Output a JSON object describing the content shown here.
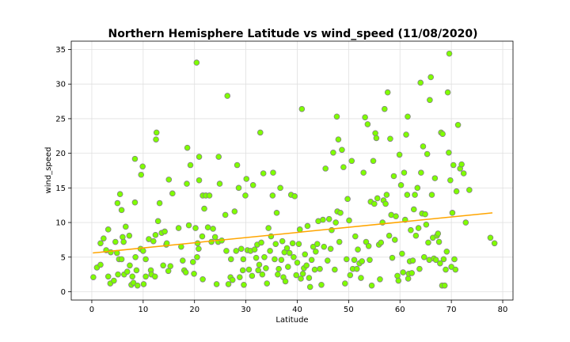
{
  "chart_data": {
    "type": "scatter",
    "title": "Northern Hemisphere Latitude vs wind_speed (11/08/2020)",
    "xlabel": "Latitude",
    "ylabel": "wind_speed",
    "xlim": [
      -4,
      82
    ],
    "ylim": [
      -1.2,
      36.2
    ],
    "xticks": [
      0,
      10,
      20,
      30,
      40,
      50,
      60,
      70,
      80
    ],
    "yticks": [
      0,
      5,
      10,
      15,
      20,
      25,
      30,
      35
    ],
    "grid": true,
    "marker_color": "#7fff00",
    "marker_edge_color": "#808080",
    "regression": {
      "color": "#ffa500",
      "x": [
        0.2,
        78
      ],
      "y": [
        5.6,
        11.4
      ]
    },
    "points": [
      [
        0.3,
        2.1
      ],
      [
        1.0,
        3.5
      ],
      [
        1.7,
        7.0
      ],
      [
        1.7,
        3.9
      ],
      [
        2.3,
        7.7
      ],
      [
        2.8,
        6.0
      ],
      [
        3.2,
        9.0
      ],
      [
        3.2,
        2.2
      ],
      [
        3.7,
        5.7
      ],
      [
        3.6,
        1.2
      ],
      [
        4.3,
        1.6
      ],
      [
        4.6,
        7.2
      ],
      [
        4.9,
        5.6
      ],
      [
        5.0,
        12.8
      ],
      [
        5.3,
        4.7
      ],
      [
        5.1,
        2.5
      ],
      [
        5.5,
        14.1
      ],
      [
        5.8,
        4.7
      ],
      [
        5.8,
        11.8
      ],
      [
        6.0,
        7.9
      ],
      [
        6.2,
        7.2
      ],
      [
        6.3,
        2.5
      ],
      [
        6.6,
        9.4
      ],
      [
        6.9,
        2.9
      ],
      [
        7.3,
        8.1
      ],
      [
        7.4,
        3.8
      ],
      [
        7.7,
        1.0
      ],
      [
        7.9,
        2.2
      ],
      [
        8.1,
        1.3
      ],
      [
        8.4,
        19.2
      ],
      [
        8.4,
        12.9
      ],
      [
        8.5,
        5.0
      ],
      [
        8.7,
        3.1
      ],
      [
        8.9,
        0.9
      ],
      [
        9.5,
        6.2
      ],
      [
        9.6,
        16.9
      ],
      [
        9.9,
        18.1
      ],
      [
        10.0,
        5.9
      ],
      [
        10.1,
        1.1
      ],
      [
        10.5,
        2.2
      ],
      [
        10.5,
        4.7
      ],
      [
        11.1,
        7.6
      ],
      [
        11.5,
        3.1
      ],
      [
        11.6,
        2.5
      ],
      [
        12.0,
        7.3
      ],
      [
        12.3,
        2.2
      ],
      [
        12.4,
        8.2
      ],
      [
        12.5,
        22.0
      ],
      [
        12.6,
        23.0
      ],
      [
        12.9,
        10.2
      ],
      [
        13.2,
        12.8
      ],
      [
        13.6,
        8.5
      ],
      [
        13.9,
        3.8
      ],
      [
        14.2,
        8.7
      ],
      [
        14.5,
        6.8
      ],
      [
        14.6,
        7.0
      ],
      [
        14.9,
        3.0
      ],
      [
        15.0,
        16.2
      ],
      [
        15.3,
        3.7
      ],
      [
        15.7,
        14.2
      ],
      [
        16.9,
        9.2
      ],
      [
        17.4,
        6.5
      ],
      [
        17.7,
        4.5
      ],
      [
        18.0,
        3.1
      ],
      [
        18.3,
        2.8
      ],
      [
        18.5,
        15.6
      ],
      [
        18.6,
        20.8
      ],
      [
        18.9,
        9.6
      ],
      [
        19.2,
        18.3
      ],
      [
        19.7,
        4.3
      ],
      [
        19.9,
        2.6
      ],
      [
        20.2,
        9.2
      ],
      [
        20.4,
        33.1
      ],
      [
        20.5,
        5.0
      ],
      [
        20.6,
        7.0
      ],
      [
        20.8,
        6.2
      ],
      [
        20.9,
        16.1
      ],
      [
        20.9,
        19.5
      ],
      [
        21.5,
        8.0
      ],
      [
        21.6,
        13.9
      ],
      [
        21.6,
        1.8
      ],
      [
        21.9,
        12.0
      ],
      [
        22.2,
        13.9
      ],
      [
        22.6,
        9.3
      ],
      [
        22.9,
        13.9
      ],
      [
        23.3,
        7.2
      ],
      [
        23.6,
        9.1
      ],
      [
        24.0,
        7.9
      ],
      [
        24.3,
        1.1
      ],
      [
        24.6,
        7.2
      ],
      [
        24.7,
        19.5
      ],
      [
        24.9,
        15.6
      ],
      [
        25.3,
        7.4
      ],
      [
        26.0,
        11.1
      ],
      [
        26.2,
        5.9
      ],
      [
        26.4,
        28.3
      ],
      [
        26.6,
        1.1
      ],
      [
        27.0,
        2.1
      ],
      [
        27.1,
        4.7
      ],
      [
        27.4,
        1.7
      ],
      [
        27.8,
        11.6
      ],
      [
        28.1,
        5.9
      ],
      [
        28.3,
        18.3
      ],
      [
        28.6,
        15.0
      ],
      [
        28.8,
        2.1
      ],
      [
        29.1,
        6.2
      ],
      [
        29.4,
        3.1
      ],
      [
        29.5,
        4.7
      ],
      [
        29.6,
        1.0
      ],
      [
        29.9,
        13.9
      ],
      [
        30.1,
        16.3
      ],
      [
        30.3,
        6.0
      ],
      [
        30.6,
        3.2
      ],
      [
        30.9,
        5.9
      ],
      [
        31.2,
        2.3
      ],
      [
        31.4,
        15.4
      ],
      [
        31.7,
        6.1
      ],
      [
        32.0,
        4.9
      ],
      [
        32.2,
        6.8
      ],
      [
        32.4,
        3.1
      ],
      [
        32.6,
        3.9
      ],
      [
        32.8,
        23.0
      ],
      [
        33.0,
        7.1
      ],
      [
        33.2,
        2.5
      ],
      [
        33.4,
        17.1
      ],
      [
        33.6,
        5.0
      ],
      [
        33.9,
        3.4
      ],
      [
        34.1,
        1.2
      ],
      [
        34.4,
        9.2
      ],
      [
        34.7,
        5.9
      ],
      [
        34.9,
        8.0
      ],
      [
        35.2,
        13.9
      ],
      [
        35.3,
        17.2
      ],
      [
        35.6,
        4.7
      ],
      [
        35.8,
        6.9
      ],
      [
        36.0,
        11.4
      ],
      [
        36.2,
        2.5
      ],
      [
        36.4,
        3.3
      ],
      [
        36.7,
        15.0
      ],
      [
        36.9,
        4.6
      ],
      [
        37.1,
        7.3
      ],
      [
        37.3,
        2.1
      ],
      [
        37.5,
        5.7
      ],
      [
        37.7,
        1.5
      ],
      [
        38.0,
        6.3
      ],
      [
        38.2,
        3.6
      ],
      [
        38.5,
        5.6
      ],
      [
        38.8,
        14.0
      ],
      [
        39.1,
        7.0
      ],
      [
        39.3,
        5.0
      ],
      [
        39.5,
        13.8
      ],
      [
        39.8,
        2.4
      ],
      [
        40.0,
        4.2
      ],
      [
        40.3,
        6.9
      ],
      [
        40.5,
        9.0
      ],
      [
        40.7,
        1.9
      ],
      [
        40.9,
        26.4
      ],
      [
        41.1,
        2.6
      ],
      [
        41.3,
        3.4
      ],
      [
        41.5,
        5.4
      ],
      [
        41.8,
        3.8
      ],
      [
        42.0,
        9.5
      ],
      [
        42.3,
        2.0
      ],
      [
        42.5,
        0.7
      ],
      [
        42.8,
        4.6
      ],
      [
        43.1,
        6.5
      ],
      [
        43.4,
        3.2
      ],
      [
        43.6,
        5.8
      ],
      [
        43.9,
        6.9
      ],
      [
        44.1,
        10.2
      ],
      [
        44.4,
        3.3
      ],
      [
        44.7,
        1.0
      ],
      [
        45.0,
        10.4
      ],
      [
        45.2,
        6.5
      ],
      [
        45.5,
        17.8
      ],
      [
        45.9,
        4.5
      ],
      [
        46.2,
        10.5
      ],
      [
        46.5,
        6.2
      ],
      [
        46.7,
        8.9
      ],
      [
        47.0,
        20.1
      ],
      [
        47.3,
        3.2
      ],
      [
        47.5,
        10.0
      ],
      [
        47.7,
        25.3
      ],
      [
        47.8,
        11.6
      ],
      [
        48.0,
        22.0
      ],
      [
        48.2,
        7.2
      ],
      [
        48.4,
        11.4
      ],
      [
        48.7,
        20.5
      ],
      [
        49.0,
        18.0
      ],
      [
        49.3,
        1.2
      ],
      [
        49.6,
        4.7
      ],
      [
        49.8,
        13.4
      ],
      [
        50.1,
        10.3
      ],
      [
        50.3,
        2.4
      ],
      [
        50.6,
        18.9
      ],
      [
        50.8,
        3.3
      ],
      [
        51.1,
        4.6
      ],
      [
        51.3,
        8.0
      ],
      [
        51.6,
        3.3
      ],
      [
        51.8,
        6.1
      ],
      [
        52.1,
        4.1
      ],
      [
        52.4,
        2.0
      ],
      [
        52.6,
        4.4
      ],
      [
        52.9,
        17.2
      ],
      [
        53.2,
        25.2
      ],
      [
        53.4,
        7.2
      ],
      [
        53.7,
        24.2
      ],
      [
        53.9,
        6.6
      ],
      [
        54.1,
        4.6
      ],
      [
        54.3,
        13.0
      ],
      [
        54.5,
        0.9
      ],
      [
        54.8,
        18.9
      ],
      [
        55.0,
        12.7
      ],
      [
        55.2,
        22.9
      ],
      [
        55.4,
        22.2
      ],
      [
        55.6,
        13.5
      ],
      [
        55.9,
        6.8
      ],
      [
        56.1,
        1.8
      ],
      [
        56.3,
        7.1
      ],
      [
        56.6,
        10.0
      ],
      [
        56.8,
        13.2
      ],
      [
        57.0,
        26.4
      ],
      [
        57.2,
        12.7
      ],
      [
        57.4,
        14.0
      ],
      [
        57.6,
        28.8
      ],
      [
        57.9,
        8.1
      ],
      [
        58.1,
        22.1
      ],
      [
        58.3,
        11.1
      ],
      [
        58.5,
        4.9
      ],
      [
        58.8,
        16.7
      ],
      [
        59.0,
        7.5
      ],
      [
        59.2,
        10.9
      ],
      [
        59.5,
        2.3
      ],
      [
        59.7,
        1.6
      ],
      [
        59.9,
        19.8
      ],
      [
        60.2,
        15.4
      ],
      [
        60.4,
        5.5
      ],
      [
        60.6,
        2.8
      ],
      [
        60.8,
        17.2
      ],
      [
        61.0,
        10.4
      ],
      [
        61.2,
        22.7
      ],
      [
        61.4,
        14.0
      ],
      [
        61.5,
        25.3
      ],
      [
        61.6,
        1.9
      ],
      [
        61.7,
        2.6
      ],
      [
        61.9,
        4.4
      ],
      [
        62.1,
        8.9
      ],
      [
        62.3,
        2.7
      ],
      [
        62.5,
        4.5
      ],
      [
        62.7,
        11.9
      ],
      [
        62.9,
        14.0
      ],
      [
        63.1,
        8.1
      ],
      [
        63.4,
        15.0
      ],
      [
        63.6,
        9.2
      ],
      [
        63.8,
        3.3
      ],
      [
        64.0,
        30.2
      ],
      [
        64.1,
        17.2
      ],
      [
        64.3,
        11.3
      ],
      [
        64.5,
        21.0
      ],
      [
        64.7,
        5.0
      ],
      [
        64.9,
        11.2
      ],
      [
        65.1,
        9.7
      ],
      [
        65.3,
        19.9
      ],
      [
        65.5,
        7.1
      ],
      [
        65.7,
        4.6
      ],
      [
        65.8,
        27.7
      ],
      [
        66.0,
        31.0
      ],
      [
        66.2,
        14.0
      ],
      [
        66.4,
        7.8
      ],
      [
        66.6,
        4.8
      ],
      [
        66.8,
        16.4
      ],
      [
        67.0,
        4.6
      ],
      [
        67.2,
        8.1
      ],
      [
        67.4,
        8.4
      ],
      [
        67.6,
        7.2
      ],
      [
        67.8,
        4.1
      ],
      [
        68.0,
        23.0
      ],
      [
        68.2,
        0.9
      ],
      [
        68.3,
        22.8
      ],
      [
        68.5,
        4.7
      ],
      [
        68.7,
        0.9
      ],
      [
        68.9,
        3.2
      ],
      [
        69.1,
        5.8
      ],
      [
        69.3,
        28.8
      ],
      [
        69.5,
        20.1
      ],
      [
        69.6,
        34.4
      ],
      [
        69.8,
        16.1
      ],
      [
        70.0,
        3.6
      ],
      [
        70.2,
        11.4
      ],
      [
        70.4,
        18.3
      ],
      [
        70.6,
        4.7
      ],
      [
        70.8,
        3.2
      ],
      [
        71.0,
        14.5
      ],
      [
        71.3,
        24.1
      ],
      [
        71.7,
        17.8
      ],
      [
        72.0,
        18.4
      ],
      [
        72.4,
        17.1
      ],
      [
        72.8,
        10.0
      ],
      [
        73.5,
        14.7
      ],
      [
        77.6,
        7.8
      ],
      [
        78.4,
        7.0
      ]
    ]
  }
}
